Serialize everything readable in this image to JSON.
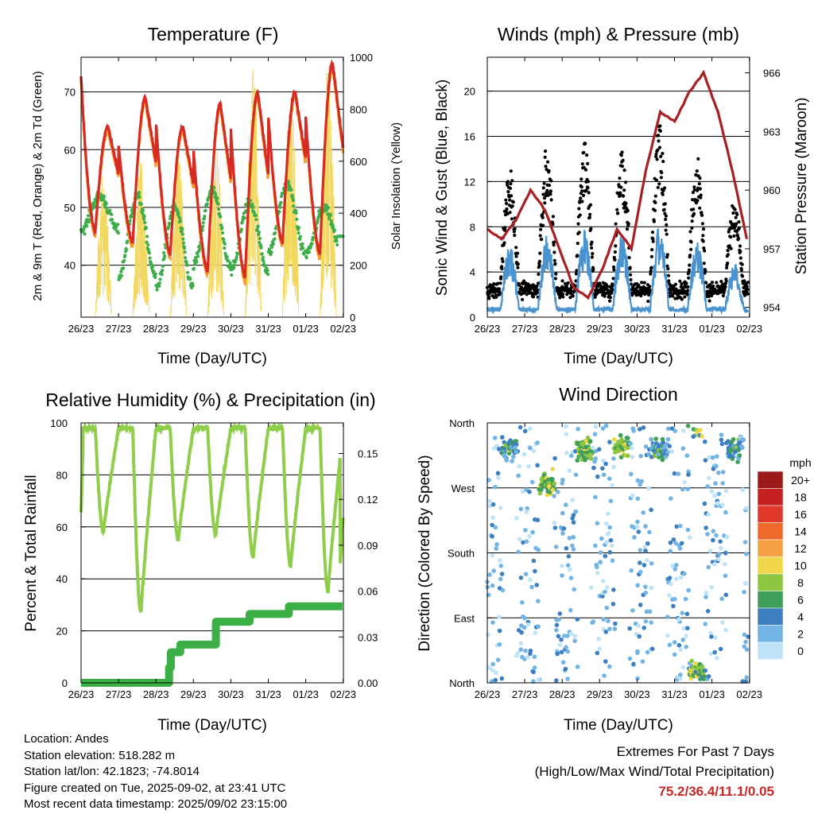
{
  "x_ticks": [
    "26/23",
    "27/23",
    "28/23",
    "29/23",
    "30/23",
    "31/23",
    "01/23",
    "02/23"
  ],
  "x_axis_label": "Time (Day/UTC)",
  "chart_data": [
    {
      "type": "line",
      "title": "Temperature (F)",
      "ylabel": "2m & 9m T (Red, Orange) & 2m Td (Green)",
      "y2label": "Solar Insolation (Yellow)",
      "ylim": [
        31,
        76
      ],
      "y2lim": [
        0,
        1000
      ],
      "y_ticks": [
        "40",
        "50",
        "60",
        "70"
      ],
      "y2_ticks": [
        "0",
        "200",
        "400",
        "600",
        "800",
        "1000"
      ],
      "days_min_T": [
        46,
        44,
        42,
        39,
        38,
        44,
        42
      ],
      "days_max_T": [
        64,
        69,
        64,
        68,
        70,
        70,
        75
      ],
      "series": []
    },
    {
      "type": "scatter",
      "title": "Winds (mph) & Pressure (mb)",
      "ylabel": "Sonic Wind & Gust (Blue, Black)",
      "y2label": "Station Pressure (Maroon)",
      "ylim": [
        0,
        23
      ],
      "y2lim": [
        953.5,
        966.8
      ],
      "y_ticks": [
        "0",
        "4",
        "8",
        "12",
        "16",
        "20"
      ],
      "y2_ticks": [
        "954",
        "957",
        "960",
        "963",
        "966"
      ],
      "pressure": [
        958,
        957.5,
        958.5,
        960,
        959,
        957,
        955,
        954.5,
        956,
        958,
        957,
        961,
        964,
        963.5,
        965,
        966,
        964,
        961,
        957.5
      ],
      "series": []
    },
    {
      "type": "line",
      "title": "Relative Humidity (%) & Precipitation (in)",
      "ylabel": "Percent & Total Rainfall",
      "ylim": [
        0,
        100
      ],
      "y2lim": [
        0,
        0.17
      ],
      "y_ticks": [
        "0",
        "20",
        "40",
        "60",
        "80",
        "100"
      ],
      "y2_ticks": [
        "0.00",
        "0.03",
        "0.06",
        "0.09",
        "0.12",
        "0.15"
      ],
      "precip_steps": [
        [
          0,
          0
        ],
        [
          2.35,
          0.01
        ],
        [
          2.4,
          0.02
        ],
        [
          2.65,
          0.025
        ],
        [
          3.6,
          0.04
        ],
        [
          4.5,
          0.045
        ],
        [
          5.55,
          0.05
        ]
      ],
      "series": []
    },
    {
      "type": "scatter",
      "title": "Wind Direction",
      "ylabel": "Direction (Colored By Speed)",
      "y_ticks": [
        "North",
        "West",
        "South",
        "East",
        "North"
      ],
      "legend_title": "mph",
      "legend_labels": [
        "20+",
        "18",
        "16",
        "14",
        "12",
        "10",
        "8",
        "6",
        "4",
        "2",
        "0"
      ],
      "legend_colors": [
        "#9b1b1b",
        "#c4201f",
        "#e0382a",
        "#ee6a2c",
        "#f6a046",
        "#f2d64a",
        "#8ec63f",
        "#3f9e5a",
        "#3d7fbf",
        "#72b4e3",
        "#bfe3f7"
      ],
      "series": []
    }
  ],
  "footer": {
    "location": "Location: Andes",
    "elevation": "Station elevation: 518.282 m",
    "latlon": "Station lat/lon: 42.1823; -74.8014",
    "created": "Figure created on Tue, 2025-09-02, at 23:41 UTC",
    "recent": "Most recent data timestamp: 2025/09/02 23:15:00"
  },
  "extremes": {
    "heading": "Extremes For Past 7 Days",
    "subheading": "(High/Low/Max Wind/Total Precipitation)",
    "values": "75.2/36.4/11.1/0.05"
  }
}
